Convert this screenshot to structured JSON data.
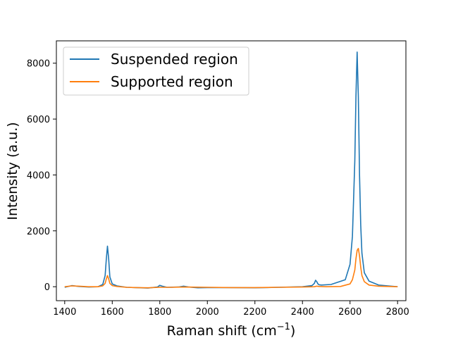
{
  "chart_data": {
    "type": "line",
    "title": "",
    "xlabel": "Raman shift (cm",
    "xlabel_sup": "−1",
    "xlabel_suffix": ")",
    "ylabel": "Intensity (a.u.)",
    "xlim": [
      1365,
      2835
    ],
    "ylim": [
      -500,
      8800
    ],
    "xticks": [
      1400,
      1600,
      1800,
      2000,
      2200,
      2400,
      2600,
      2800
    ],
    "yticks": [
      0,
      2000,
      4000,
      6000,
      8000
    ],
    "grid": false,
    "legend_position": "top-left",
    "series": [
      {
        "name": "Suspended region",
        "color": "#1f77b4",
        "x": [
          1400,
          1430,
          1460,
          1500,
          1540,
          1560,
          1570,
          1575,
          1580,
          1585,
          1590,
          1600,
          1620,
          1660,
          1700,
          1750,
          1790,
          1800,
          1810,
          1830,
          1880,
          1900,
          1920,
          1960,
          2000,
          2100,
          2200,
          2300,
          2400,
          2440,
          2450,
          2455,
          2460,
          2465,
          2470,
          2480,
          2520,
          2580,
          2600,
          2610,
          2620,
          2625,
          2630,
          2635,
          2640,
          2645,
          2650,
          2660,
          2680,
          2720,
          2760,
          2800
        ],
        "y": [
          -20,
          40,
          10,
          -10,
          0,
          80,
          400,
          1000,
          1450,
          1000,
          350,
          100,
          30,
          -20,
          -30,
          -50,
          -10,
          50,
          20,
          -20,
          -10,
          20,
          -10,
          -40,
          -30,
          -30,
          -40,
          -20,
          0,
          40,
          120,
          230,
          180,
          100,
          70,
          60,
          80,
          250,
          800,
          1800,
          4500,
          6800,
          8400,
          6800,
          4000,
          2200,
          1200,
          500,
          200,
          60,
          30,
          0
        ]
      },
      {
        "name": "Supported region",
        "color": "#ff7f0e",
        "x": [
          1400,
          1430,
          1460,
          1500,
          1540,
          1560,
          1570,
          1575,
          1580,
          1585,
          1590,
          1600,
          1620,
          1660,
          1700,
          1750,
          1800,
          1850,
          1900,
          2000,
          2100,
          2200,
          2300,
          2400,
          2450,
          2460,
          2470,
          2500,
          2560,
          2600,
          2610,
          2620,
          2625,
          2630,
          2635,
          2640,
          2645,
          2650,
          2660,
          2680,
          2720,
          2760,
          2800
        ],
        "y": [
          0,
          30,
          20,
          0,
          0,
          30,
          120,
          280,
          400,
          280,
          120,
          40,
          10,
          -20,
          -30,
          -40,
          -20,
          -20,
          -10,
          -20,
          -30,
          -30,
          -20,
          -10,
          0,
          20,
          10,
          0,
          10,
          100,
          250,
          600,
          1000,
          1300,
          1370,
          1100,
          700,
          400,
          180,
          60,
          20,
          10,
          0
        ]
      }
    ]
  }
}
